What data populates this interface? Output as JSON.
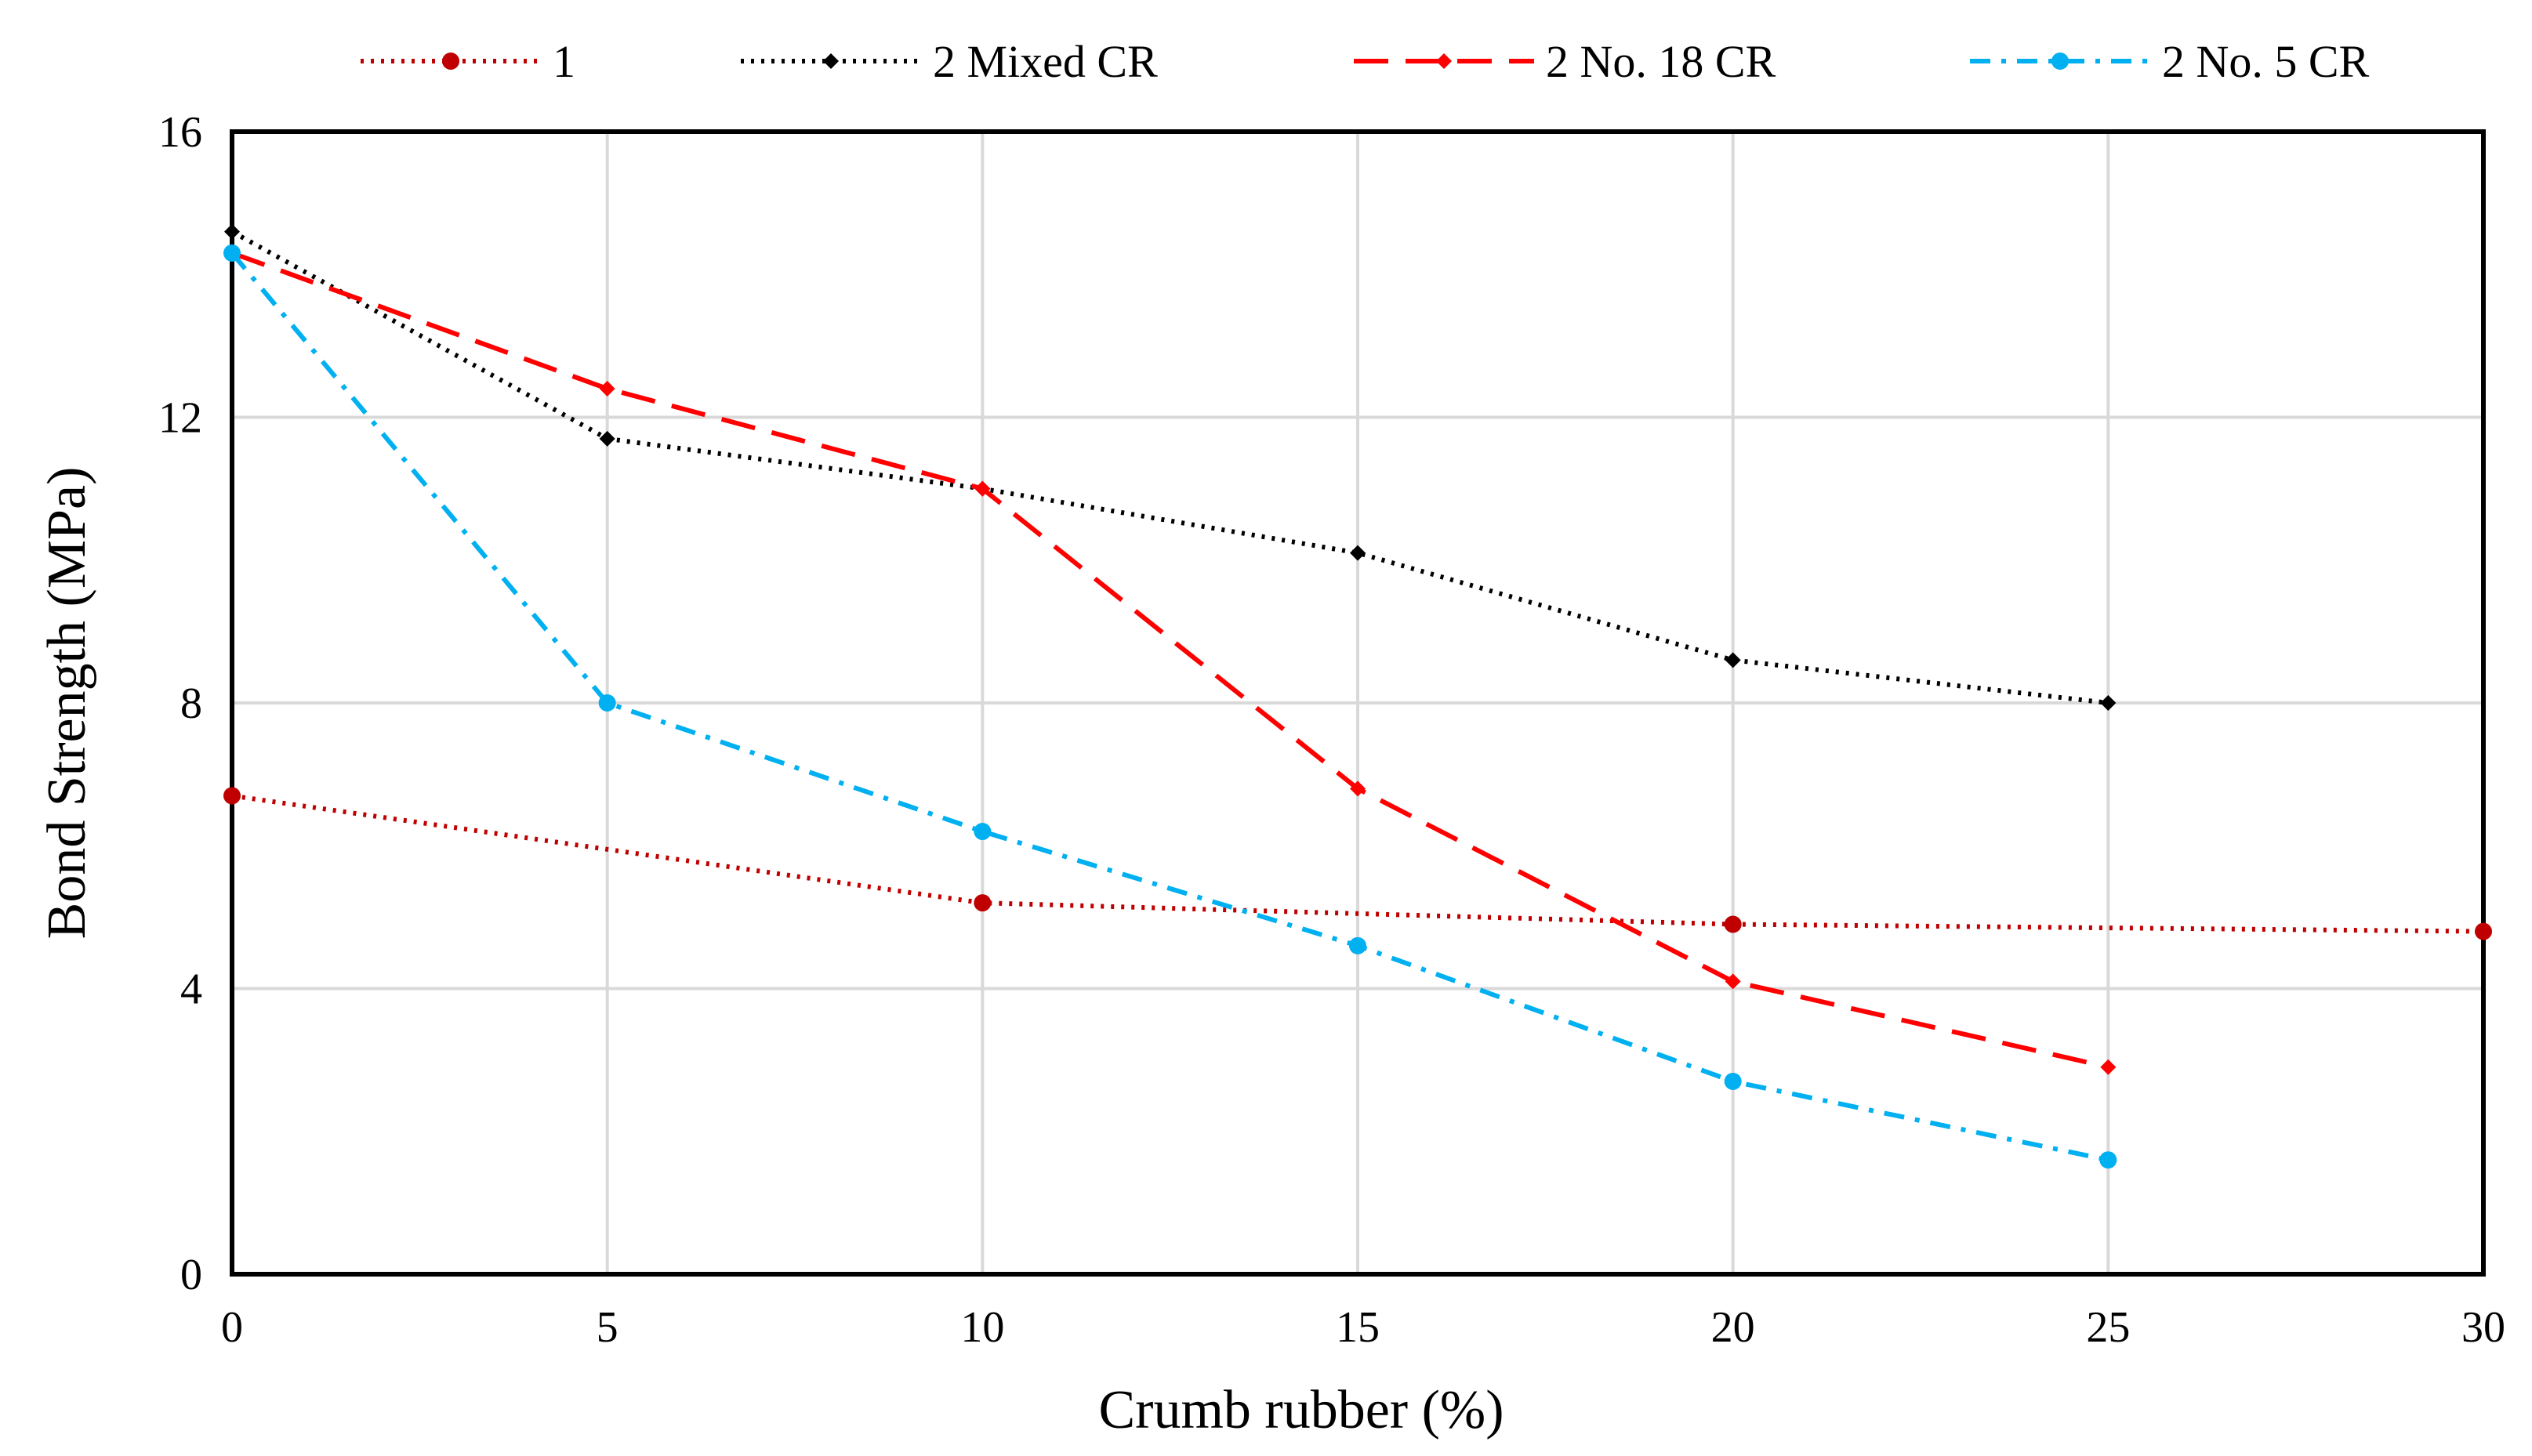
{
  "chart_data": {
    "type": "line",
    "title": "",
    "xlabel": "Crumb rubber (%)",
    "ylabel": "Bond Strength (MPa)",
    "xlim": [
      0,
      30
    ],
    "ylim": [
      0,
      16
    ],
    "xticks": [
      0,
      5,
      10,
      15,
      20,
      25,
      30
    ],
    "yticks": [
      0,
      4,
      8,
      12,
      16
    ],
    "grid": "vertical-and-horizontal",
    "legend_position": "top",
    "series": [
      {
        "name": "1",
        "color": "#c00000",
        "line_style": "dotted",
        "marker": "circle",
        "points": [
          [
            0,
            6.7
          ],
          [
            10,
            5.2
          ],
          [
            20,
            4.9
          ],
          [
            30,
            4.8
          ]
        ]
      },
      {
        "name": "2 Mixed CR",
        "color": "#000000",
        "line_style": "dotted",
        "marker": "diamond",
        "points": [
          [
            0,
            14.6
          ],
          [
            5,
            11.7
          ],
          [
            10,
            11.0
          ],
          [
            15,
            10.1
          ],
          [
            20,
            8.6
          ],
          [
            25,
            8.0
          ]
        ]
      },
      {
        "name": "2 No. 18 CR",
        "color": "#ff0000",
        "line_style": "long-dash",
        "marker": "diamond",
        "points": [
          [
            0,
            14.3
          ],
          [
            5,
            12.4
          ],
          [
            10,
            11.0
          ],
          [
            15,
            6.8
          ],
          [
            20,
            4.1
          ],
          [
            25,
            2.9
          ]
        ]
      },
      {
        "name": "2 No. 5 CR",
        "color": "#00b0f0",
        "line_style": "dash-dot",
        "marker": "circle",
        "points": [
          [
            0,
            14.3
          ],
          [
            5,
            8.0
          ],
          [
            10,
            6.2
          ],
          [
            15,
            4.6
          ],
          [
            20,
            2.7
          ],
          [
            25,
            1.6
          ]
        ]
      }
    ]
  }
}
